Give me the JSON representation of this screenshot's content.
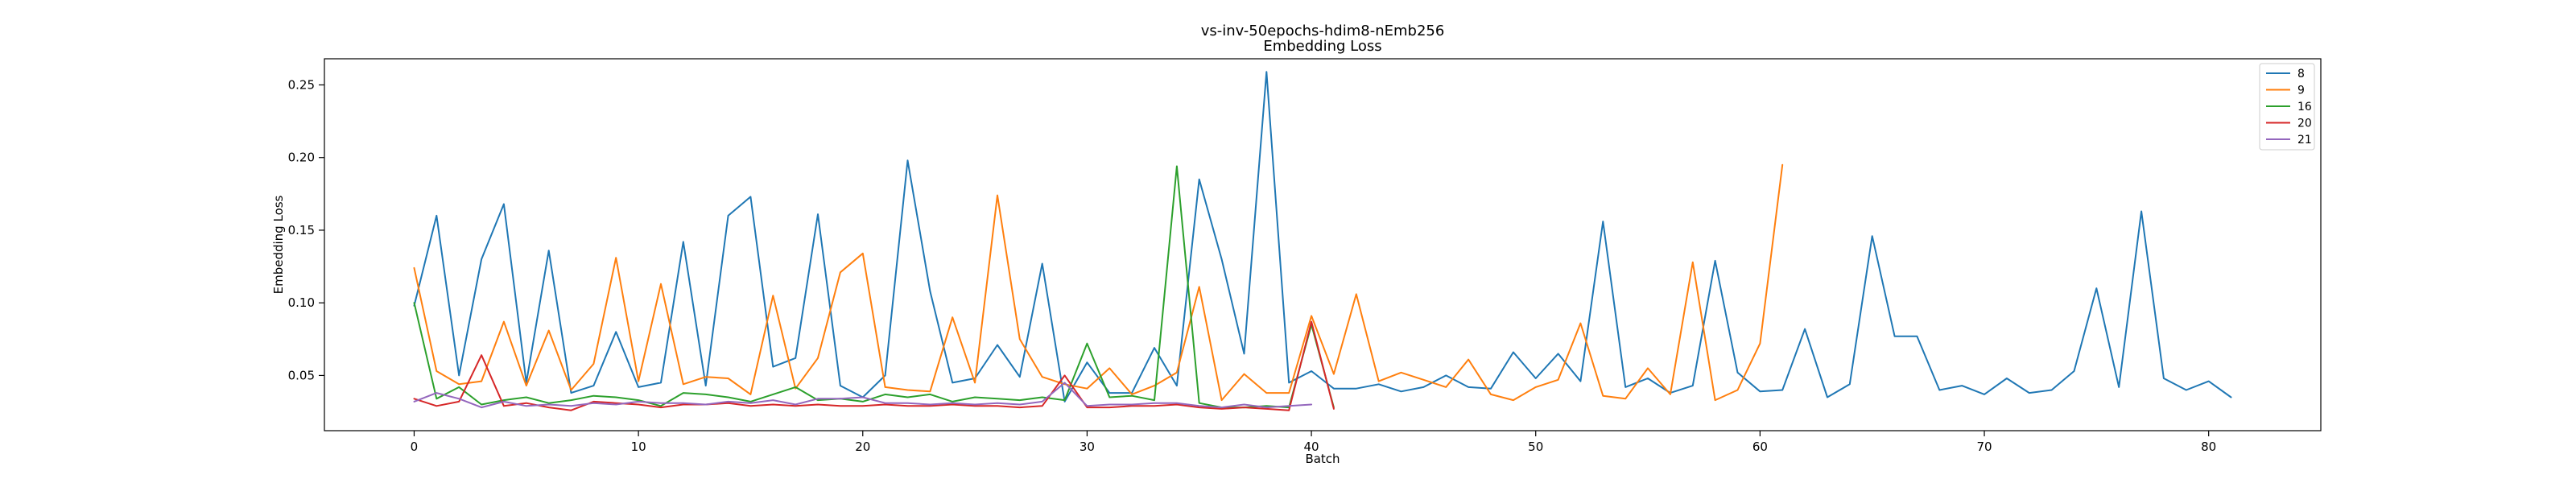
{
  "chart_data": {
    "type": "line",
    "title": "vs-inv-50epochs-hdim8-nEmb256",
    "subtitle": "Embedding Loss",
    "xlabel": "Batch",
    "ylabel": "Embedding Loss",
    "xlim": [
      -4,
      85
    ],
    "ylim": [
      0.012,
      0.268
    ],
    "xticks": [
      0,
      10,
      20,
      30,
      40,
      50,
      60,
      70,
      80
    ],
    "yticks": [
      0.05,
      0.1,
      0.15,
      0.2,
      0.25
    ],
    "ytick_labels": [
      "0.05",
      "0.10",
      "0.15",
      "0.20",
      "0.25"
    ],
    "grid": false,
    "legend_position": "top-right",
    "series": [
      {
        "name": "8",
        "color": "#1f77b4",
        "x_start": 0,
        "values": [
          0.098,
          0.16,
          0.05,
          0.13,
          0.168,
          0.045,
          0.136,
          0.038,
          0.043,
          0.08,
          0.042,
          0.045,
          0.142,
          0.043,
          0.16,
          0.173,
          0.056,
          0.062,
          0.161,
          0.043,
          0.035,
          0.05,
          0.198,
          0.108,
          0.045,
          0.048,
          0.071,
          0.049,
          0.127,
          0.032,
          0.059,
          0.038,
          0.038,
          0.069,
          0.043,
          0.185,
          0.13,
          0.065,
          0.259,
          0.045,
          0.053,
          0.041,
          0.041,
          0.044,
          0.039,
          0.042,
          0.05,
          0.042,
          0.041,
          0.066,
          0.048,
          0.065,
          0.046,
          0.156,
          0.042,
          0.048,
          0.038,
          0.043,
          0.129,
          0.052,
          0.039,
          0.04,
          0.082,
          0.035,
          0.044,
          0.146,
          0.077,
          0.077,
          0.04,
          0.043,
          0.037,
          0.048,
          0.038,
          0.04,
          0.053,
          0.11,
          0.042,
          0.163,
          0.048,
          0.04,
          0.046,
          0.035
        ]
      },
      {
        "name": "9",
        "color": "#ff7f0e",
        "x_start": 0,
        "values": [
          0.124,
          0.053,
          0.044,
          0.046,
          0.087,
          0.043,
          0.081,
          0.04,
          0.058,
          0.131,
          0.046,
          0.113,
          0.044,
          0.049,
          0.048,
          0.037,
          0.105,
          0.041,
          0.062,
          0.121,
          0.134,
          0.042,
          0.04,
          0.039,
          0.09,
          0.045,
          0.174,
          0.075,
          0.049,
          0.044,
          0.041,
          0.055,
          0.037,
          0.043,
          0.052,
          0.111,
          0.033,
          0.051,
          0.038,
          0.038,
          0.091,
          0.051,
          0.106,
          0.046,
          0.052,
          0.047,
          0.042,
          0.061,
          0.037,
          0.033,
          0.042,
          0.047,
          0.086,
          0.036,
          0.034,
          0.055,
          0.037,
          0.128,
          0.033,
          0.04,
          0.072,
          0.195
        ]
      },
      {
        "name": "16",
        "color": "#2ca02c",
        "x_start": 0,
        "values": [
          0.1,
          0.034,
          0.042,
          0.03,
          0.033,
          0.035,
          0.031,
          0.033,
          0.036,
          0.035,
          0.033,
          0.029,
          0.038,
          0.037,
          0.035,
          0.032,
          0.037,
          0.042,
          0.033,
          0.034,
          0.032,
          0.037,
          0.035,
          0.037,
          0.032,
          0.035,
          0.034,
          0.033,
          0.035,
          0.033,
          0.072,
          0.035,
          0.036,
          0.033,
          0.194,
          0.031,
          0.028,
          0.028,
          0.029,
          0.028,
          0.085,
          0.028
        ]
      },
      {
        "name": "20",
        "color": "#d62728",
        "x_start": 0,
        "values": [
          0.034,
          0.029,
          0.032,
          0.064,
          0.029,
          0.031,
          0.028,
          0.026,
          0.032,
          0.031,
          0.03,
          0.028,
          0.03,
          0.03,
          0.031,
          0.029,
          0.03,
          0.029,
          0.03,
          0.029,
          0.029,
          0.03,
          0.029,
          0.029,
          0.03,
          0.029,
          0.029,
          0.028,
          0.029,
          0.05,
          0.028,
          0.028,
          0.029,
          0.029,
          0.03,
          0.028,
          0.027,
          0.028,
          0.027,
          0.026,
          0.087,
          0.027
        ]
      },
      {
        "name": "21",
        "color": "#9467bd",
        "x_start": 0,
        "values": [
          0.032,
          0.038,
          0.034,
          0.028,
          0.032,
          0.029,
          0.03,
          0.029,
          0.031,
          0.03,
          0.032,
          0.031,
          0.031,
          0.03,
          0.032,
          0.031,
          0.033,
          0.03,
          0.034,
          0.034,
          0.035,
          0.031,
          0.031,
          0.03,
          0.031,
          0.03,
          0.031,
          0.03,
          0.032,
          0.045,
          0.029,
          0.03,
          0.03,
          0.031,
          0.031,
          0.029,
          0.028,
          0.03,
          0.028,
          0.029,
          0.03
        ]
      }
    ]
  }
}
